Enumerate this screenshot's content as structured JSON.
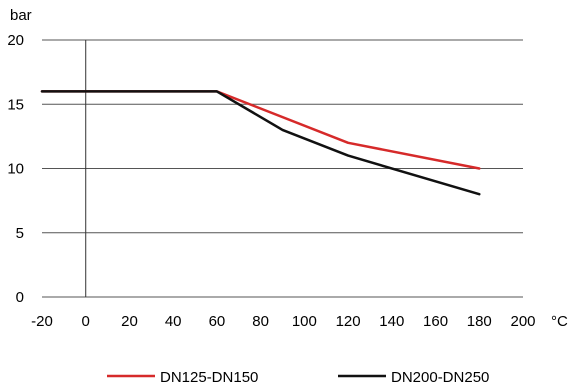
{
  "chart_data": {
    "type": "line",
    "ylabel": "bar",
    "xlabel": "°C",
    "xlim": [
      -20,
      200
    ],
    "ylim": [
      0,
      20
    ],
    "x_ticks": [
      -20,
      0,
      20,
      40,
      60,
      80,
      100,
      120,
      140,
      160,
      180,
      200
    ],
    "y_ticks": [
      0,
      5,
      10,
      15,
      20
    ],
    "grid": "horizontal",
    "legend_position": "bottom",
    "series": [
      {
        "name": "DN125-DN150",
        "color": "#d62a2a",
        "x": [
          -20,
          60,
          120,
          180
        ],
        "y": [
          16,
          16,
          12,
          10
        ]
      },
      {
        "name": "DN200-DN250",
        "color": "#111111",
        "x": [
          -20,
          60,
          90,
          120,
          180
        ],
        "y": [
          16,
          16,
          13,
          11,
          8
        ]
      }
    ]
  }
}
